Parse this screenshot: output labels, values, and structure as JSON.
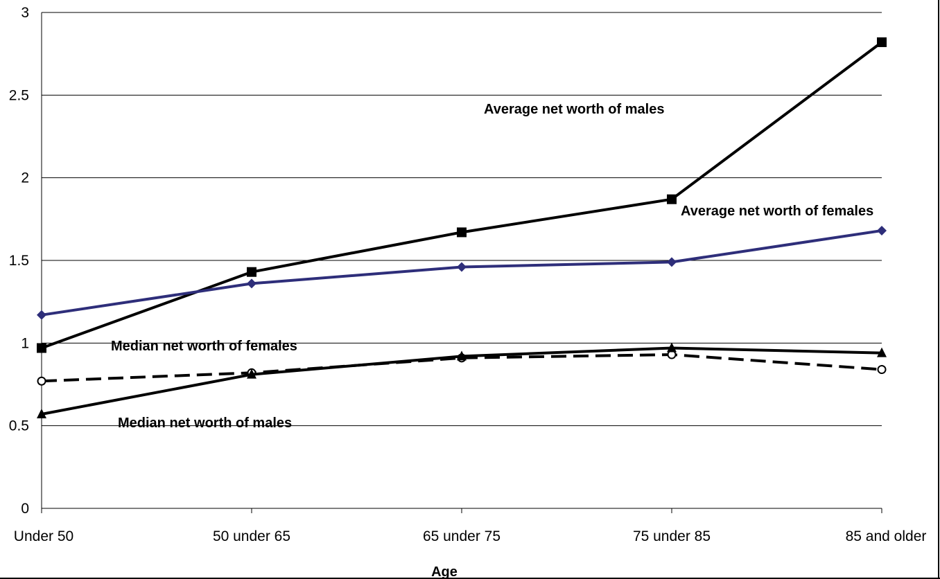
{
  "chart_data": {
    "type": "line",
    "title": "",
    "xlabel": "Age",
    "ylabel": "",
    "categories": [
      "Under 50",
      "50 under 65",
      "65 under 75",
      "75 under 85",
      "85 and older"
    ],
    "ylim": [
      0,
      3
    ],
    "yticks": [
      "0",
      "0.5",
      "1",
      "1.5",
      "2",
      "2.5",
      "3"
    ],
    "grid": "horizontal",
    "series": [
      {
        "name": "Average net worth of males",
        "values": [
          0.97,
          1.43,
          1.67,
          1.87,
          2.82
        ],
        "color": "#000000",
        "marker": "square",
        "dash": "solid"
      },
      {
        "name": "Average net worth of females",
        "values": [
          1.17,
          1.36,
          1.46,
          1.49,
          1.68
        ],
        "color": "#2e2e7a",
        "marker": "diamond",
        "dash": "solid"
      },
      {
        "name": "Median net worth of females",
        "values": [
          0.77,
          0.82,
          0.91,
          0.93,
          0.84
        ],
        "color": "#000000",
        "marker": "circle-open",
        "dash": "dashed"
      },
      {
        "name": "Median net worth of males",
        "values": [
          0.57,
          0.81,
          0.92,
          0.97,
          0.94
        ],
        "color": "#000000",
        "marker": "triangle",
        "dash": "solid"
      }
    ],
    "annotations": [
      {
        "text": "Average net worth of males",
        "series": 0
      },
      {
        "text": "Average net worth of females",
        "series": 1
      },
      {
        "text": "Median net worth of females",
        "series": 2
      },
      {
        "text": "Median net worth of males",
        "series": 3
      }
    ]
  }
}
